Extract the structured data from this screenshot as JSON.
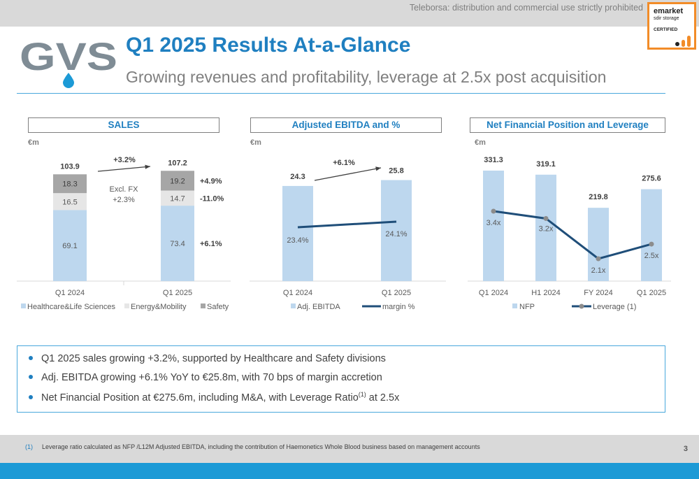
{
  "watermark": "Teleborsa: distribution and commercial use strictly prohibited",
  "badge": {
    "line1": "emarket",
    "line2": "sdir storage",
    "line3": "CERTIFIED"
  },
  "logo_text": "GVS",
  "title": "Q1 2025 Results At-a-Glance",
  "subtitle": "Growing revenues and profitability, leverage at 2.5x post acquisition",
  "colors": {
    "accent": "#1f7fc0",
    "bar_blue": "#bdd7ee",
    "bar_gray_light": "#e6e6e6",
    "bar_gray_dark": "#a6a6a6",
    "line_dark": "#1f4e79",
    "marker_gray": "#8c8c8c"
  },
  "panels": {
    "sales": {
      "title": "SALES",
      "unit": "€m"
    },
    "ebitda": {
      "title": "Adjusted EBITDA and %",
      "unit": "€m"
    },
    "nfp": {
      "title": "Net Financial Position and Leverage",
      "unit": "€m"
    }
  },
  "chart_data": [
    {
      "type": "bar",
      "stacked": true,
      "categories": [
        "Q1 2024",
        "Q1 2025"
      ],
      "series": [
        {
          "name": "Healthcare&Life Sciences",
          "values": [
            69.1,
            73.4
          ],
          "growth": "+6.1%"
        },
        {
          "name": "Energy&Mobility",
          "values": [
            16.5,
            14.7
          ],
          "growth": "-11.0%"
        },
        {
          "name": "Safety",
          "values": [
            18.3,
            19.2
          ],
          "growth": "+4.9%"
        }
      ],
      "totals": [
        "103.9",
        "107.2"
      ],
      "annotations": {
        "growth": "+3.2%",
        "excl_fx_label": "Excl. FX",
        "excl_fx_value": "+2.3%"
      },
      "legend": "bottom"
    },
    {
      "type": "bar",
      "categories": [
        "Q1 2024",
        "Q1 2025"
      ],
      "series": [
        {
          "name": "Adj. EBITDA",
          "type": "bar",
          "values": [
            24.3,
            25.8
          ]
        },
        {
          "name": "margin %",
          "type": "line",
          "values": [
            23.4,
            24.1
          ],
          "labels": [
            "23.4%",
            "24.1%"
          ]
        }
      ],
      "annotations": {
        "growth": "+6.1%"
      },
      "legend": "bottom"
    },
    {
      "type": "bar",
      "categories": [
        "Q1 2024",
        "H1 2024",
        "FY 2024",
        "Q1 2025"
      ],
      "series": [
        {
          "name": "NFP",
          "type": "bar",
          "values": [
            331.3,
            319.1,
            219.8,
            275.6
          ]
        },
        {
          "name": "Leverage (1)",
          "type": "line",
          "values": [
            3.4,
            3.2,
            2.1,
            2.5
          ],
          "labels": [
            "3.4x",
            "3.2x",
            "2.1x",
            "2.5x"
          ]
        }
      ],
      "legend": "bottom"
    }
  ],
  "bullets": [
    {
      "text": "Q1 2025 sales growing +3.2%, supported by Healthcare and Safety divisions"
    },
    {
      "text": "Adj. EBITDA growing +6.1% YoY to €25.8m, with 70 bps of margin accretion"
    },
    {
      "text": "Net Financial Position at €275.6m, including M&A, with Leverage Ratio",
      "sup": "(1)",
      "tail": " at 2.5x"
    }
  ],
  "footnote": {
    "number": "(1)",
    "text": "Leverage ratio calculated as NFP /L12M Adjusted EBITDA, including the contribution of Haemonetics Whole Blood business based on management accounts"
  },
  "page_number": "3"
}
